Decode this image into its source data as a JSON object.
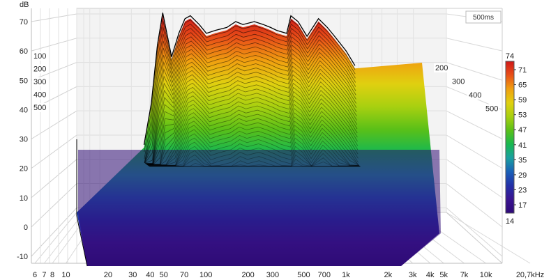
{
  "chart_data": {
    "type": "waterfall",
    "title": "",
    "ylabel": "dB",
    "xlabel": "",
    "time_window_label": "500ms",
    "y_ticks": [
      "70",
      "60",
      "50",
      "40",
      "30",
      "20",
      "10",
      "0",
      "-10"
    ],
    "y_range": [
      -13,
      75
    ],
    "x_ticks": [
      "6",
      "7",
      "8",
      "10",
      "20",
      "30",
      "40",
      "50",
      "70",
      "100",
      "200",
      "300",
      "500",
      "700",
      "1k",
      "2k",
      "3k",
      "4k",
      "5k",
      "7k",
      "10k",
      "20,7kHz"
    ],
    "x_tick_values": [
      6,
      7,
      8,
      10,
      20,
      30,
      40,
      50,
      70,
      100,
      200,
      300,
      500,
      700,
      1000,
      2000,
      3000,
      4000,
      5000,
      7000,
      10000,
      20700
    ],
    "time_ticks_left": [
      "100",
      "200",
      "300",
      "400",
      "500"
    ],
    "time_ticks_right": [
      "200",
      "300",
      "400",
      "500"
    ],
    "color_scale": {
      "max_label": "74",
      "min_label": "14",
      "ticks": [
        "71",
        "65",
        "59",
        "53",
        "47",
        "41",
        "35",
        "29",
        "23",
        "17"
      ],
      "colors": [
        "#2e0a78",
        "#3a1490",
        "#2330a8",
        "#1a60b8",
        "#1aa0a0",
        "#18b850",
        "#5ac018",
        "#a8d010",
        "#e0d010",
        "#f0a010",
        "#e85018",
        "#d01818"
      ]
    },
    "spectrum": {
      "frequencies": [
        25,
        30,
        35,
        40,
        50,
        60,
        70,
        80,
        100,
        120,
        150,
        200,
        250,
        300,
        400,
        500,
        600,
        700,
        900,
        1000,
        1200,
        1500,
        2000,
        2500,
        3000,
        4000,
        5000
      ],
      "peak_db": [
        28,
        42,
        62,
        73,
        58,
        66,
        71,
        72,
        69,
        66,
        67,
        68,
        70,
        69,
        70,
        69,
        68,
        67,
        66,
        72,
        70,
        65,
        71,
        68,
        65,
        60,
        55
      ]
    }
  }
}
